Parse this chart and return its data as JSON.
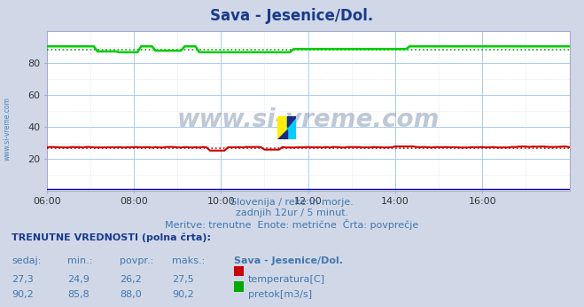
{
  "title": "Sava - Jesenice/Dol.",
  "title_color": "#1a3a8c",
  "fig_bg_color": "#d0d8e8",
  "plot_bg_color": "#ffffff",
  "grid_major_color": "#aaccee",
  "grid_minor_color": "#ccddf4",
  "xmin": 0,
  "xmax": 144,
  "ymin": 0,
  "ymax": 100,
  "ytick_vals": [
    20,
    40,
    60,
    80
  ],
  "xtick_labels": [
    "06:00",
    "08:00",
    "10:00",
    "12:00",
    "14:00",
    "16:00"
  ],
  "xtick_positions": [
    0,
    24,
    48,
    72,
    96,
    120
  ],
  "watermark_text": "www.si-vreme.com",
  "watermark_color": "#1a3a6e",
  "watermark_alpha": 0.28,
  "subtitle1": "Slovenija / reke in morje.",
  "subtitle2": "zadnjih 12ur / 5 minut.",
  "subtitle3": "Meritve: trenutne  Enote: metrične  Črta: povprečje",
  "subtitle_color": "#4477aa",
  "legend_title": "TRENUTNE VREDNOSTI (polna črta):",
  "legend_headers": [
    "sedaj:",
    "min.:",
    "povpr.:",
    "maks.:",
    "Sava - Jesenice/Dol."
  ],
  "legend_row1": [
    "27,3",
    "24,9",
    "26,2",
    "27,5",
    "temperatura[C]"
  ],
  "legend_row2": [
    "90,2",
    "85,8",
    "88,0",
    "90,2",
    "pretok[m3/s]"
  ],
  "legend_color1": "#cc0000",
  "legend_color2": "#00aa00",
  "left_label_color": "#4477aa",
  "left_label_text": "www.si-vreme.com",
  "temp_avg": 26.2,
  "flow_avg": 88.0,
  "border_color": "#aaaacc"
}
